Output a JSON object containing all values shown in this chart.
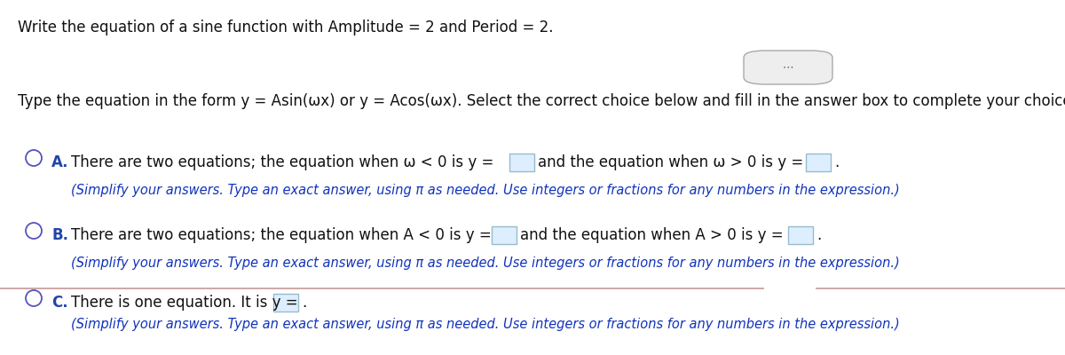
{
  "title": "Write the equation of a sine function with Amplitude = 2 and Period = 2.",
  "instruction": "Type the equation in the form y = Asin(ωx) or y = Acos(ωx). Select the correct choice below and fill in the answer box to complete your choice.",
  "option_A_label": "A.",
  "option_A_main": "There are two equations; the equation when ω < 0 is y =",
  "option_A_mid": "and the equation when ω > 0 is y =",
  "option_A_end": ".",
  "option_A_sub": "(Simplify your answers. Type an exact answer, using π as needed. Use integers or fractions for any numbers in the expression.)",
  "option_B_label": "B.",
  "option_B_main": "There are two equations; the equation when A < 0 is y =",
  "option_B_mid": "and the equation when A > 0 is y =",
  "option_B_end": ".",
  "option_B_sub": "(Simplify your answers. Type an exact answer, using π as needed. Use integers or fractions for any numbers in the expression.)",
  "option_C_label": "C.",
  "option_C_main": "There is one equation. It is y =",
  "option_C_end": ".",
  "option_C_sub": "(Simplify your answers. Type an exact answer, using π as needed. Use integers or fractions for any numbers in the expression.)",
  "divider_color": "#c9a0a0",
  "dots_button_color": "#eeeeee",
  "circle_color": "#5555bb",
  "label_color": "#2244aa",
  "text_color": "#111111",
  "blue_text_color": "#1133bb",
  "box_fill": "#ddeeff",
  "box_edge": "#99bbcc",
  "bg_color": "#ffffff",
  "title_fontsize": 12,
  "body_fontsize": 12,
  "sub_fontsize": 10.5
}
